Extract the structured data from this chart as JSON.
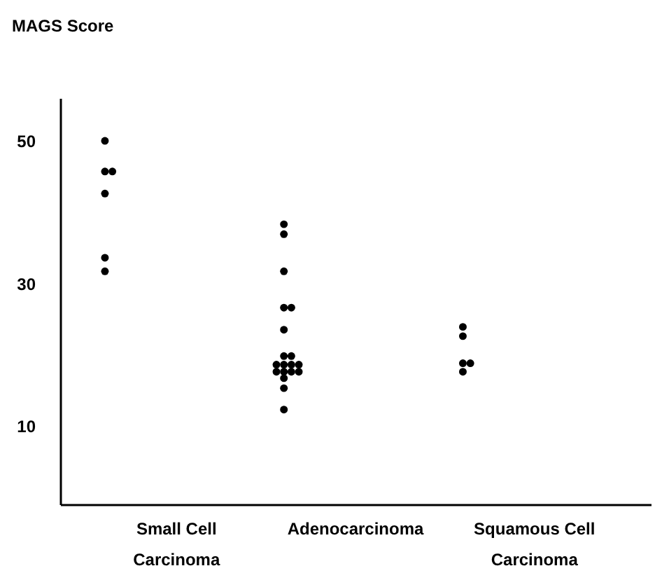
{
  "chart_data": {
    "type": "scatter",
    "ylabel": "MAGS Score",
    "categories": [
      "Small Cell Carcinoma",
      "Adenocarcinoma",
      "Squamous Cell Carcinoma"
    ],
    "series": [
      {
        "color": "#000000",
        "x": [
          "Small Cell Carcinoma",
          "Small Cell Carcinoma",
          "Small Cell Carcinoma",
          "Small Cell Carcinoma",
          "Small Cell Carcinoma",
          "Small Cell Carcinoma"
        ],
        "values": [
          50,
          45.7,
          45.7,
          42.6,
          33.6,
          31.7
        ]
      },
      {
        "color": "#000000",
        "x": [
          "Adenocarcinoma",
          "Adenocarcinoma",
          "Adenocarcinoma",
          "Adenocarcinoma",
          "Adenocarcinoma",
          "Adenocarcinoma",
          "Adenocarcinoma",
          "Adenocarcinoma",
          "Adenocarcinoma",
          "Adenocarcinoma",
          "Adenocarcinoma",
          "Adenocarcinoma",
          "Adenocarcinoma",
          "Adenocarcinoma",
          "Adenocarcinoma",
          "Adenocarcinoma",
          "Adenocarcinoma",
          "Adenocarcinoma",
          "Adenocarcinoma"
        ],
        "values": [
          38.3,
          36.9,
          31.7,
          26.6,
          26.6,
          23.5,
          19.8,
          19.8,
          18.6,
          18.6,
          18.6,
          17.6,
          17.6,
          17.6,
          17.6,
          16.7,
          15.3,
          12.3,
          18.6
        ]
      },
      {
        "color": "#000000",
        "x": [
          "Squamous Cell Carcinoma",
          "Squamous Cell Carcinoma",
          "Squamous Cell Carcinoma",
          "Squamous Cell Carcinoma",
          "Squamous Cell Carcinoma"
        ],
        "values": [
          23.9,
          22.6,
          18.8,
          18.8,
          17.6
        ]
      }
    ],
    "ylim": [
      -1,
      56
    ],
    "yticks": [
      10,
      30,
      50
    ],
    "grid": false,
    "marker": "circle"
  }
}
